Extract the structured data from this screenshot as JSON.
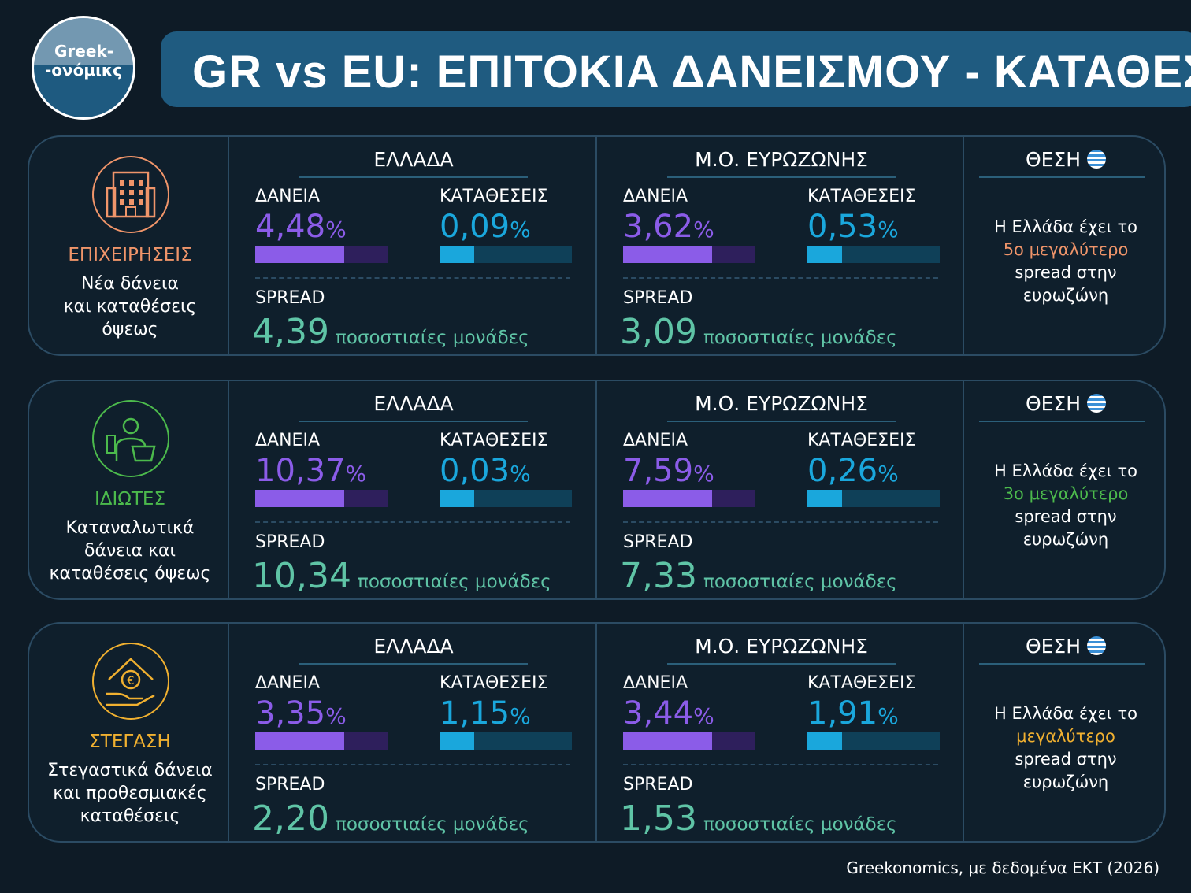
{
  "header": {
    "logo_line1": "Greek-",
    "logo_line2": "-ονόμικς",
    "title": "GR vs EU: ΕΠΙΤΟΚΙΑ ΔΑΝΕΙΣΜΟΥ - ΚΑΤΑΘΕΣΕΩΝ"
  },
  "rows": [
    {
      "category": "ΕΠΙΧΕΙΡΗΣΕΙΣ",
      "category_color": "#f0956a",
      "icon": "building",
      "description": [
        "Νέα δάνεια",
        "και καταθέσεις",
        "όψεως"
      ],
      "greece": {
        "heading": "ΕΛΛΑΔΑ",
        "loans_label": "ΔΑΝΕΙΑ",
        "loans": "4,48",
        "deposits_label": "ΚΑΤΑΘΕΣΕΙΣ",
        "deposits": "0,09",
        "percent": "%",
        "spread_label": "SPREAD",
        "spread": "4,39",
        "spread_unit": "ποσοστιαίες μονάδες"
      },
      "eurozone": {
        "heading": "Μ.Ο. ΕΥΡΩΖΩΝΗΣ",
        "loans_label": "ΔΑΝΕΙΑ",
        "loans": "3,62",
        "deposits_label": "ΚΑΤΑΘΕΣΕΙΣ",
        "deposits": "0,53",
        "percent": "%",
        "spread_label": "SPREAD",
        "spread": "3,09",
        "spread_unit": "ποσοστιαίες μονάδες"
      },
      "rank": {
        "heading": "ΘΕΣΗ",
        "text_before": "Η Ελλάδα έχει το",
        "highlight": "5ο μεγαλύτερο",
        "text_after": "spread στην ευρωζώνη"
      }
    },
    {
      "category": "ΙΔΙΩΤΕΣ",
      "category_color": "#4cba4c",
      "icon": "person",
      "description": [
        "Καταναλωτικά",
        "δάνεια και",
        "καταθέσεις όψεως"
      ],
      "greece": {
        "heading": "ΕΛΛΑΔΑ",
        "loans_label": "ΔΑΝΕΙΑ",
        "loans": "10,37",
        "deposits_label": "ΚΑΤΑΘΕΣΕΙΣ",
        "deposits": "0,03",
        "percent": "%",
        "spread_label": "SPREAD",
        "spread": "10,34",
        "spread_unit": "ποσοστιαίες μονάδες"
      },
      "eurozone": {
        "heading": "Μ.Ο. ΕΥΡΩΖΩΝΗΣ",
        "loans_label": "ΔΑΝΕΙΑ",
        "loans": "7,59",
        "deposits_label": "ΚΑΤΑΘΕΣΕΙΣ",
        "deposits": "0,26",
        "percent": "%",
        "spread_label": "SPREAD",
        "spread": "7,33",
        "spread_unit": "ποσοστιαίες μονάδες"
      },
      "rank": {
        "heading": "ΘΕΣΗ",
        "text_before": "Η Ελλάδα έχει το",
        "highlight": "3ο μεγαλύτερο",
        "text_after": "spread στην ευρωζώνη"
      }
    },
    {
      "category": "ΣΤΕΓΑΣΗ",
      "category_color": "#f0b030",
      "icon": "house",
      "description": [
        "Στεγαστικά δάνεια",
        "και προθεσμιακές",
        "καταθέσεις"
      ],
      "greece": {
        "heading": "ΕΛΛΑΔΑ",
        "loans_label": "ΔΑΝΕΙΑ",
        "loans": "3,35",
        "deposits_label": "ΚΑΤΑΘΕΣΕΙΣ",
        "deposits": "1,15",
        "percent": "%",
        "spread_label": "SPREAD",
        "spread": "2,20",
        "spread_unit": "ποσοστιαίες μονάδες"
      },
      "eurozone": {
        "heading": "Μ.Ο. ΕΥΡΩΖΩΝΗΣ",
        "loans_label": "ΔΑΝΕΙΑ",
        "loans": "3,44",
        "deposits_label": "ΚΑΤΑΘΕΣΕΙΣ",
        "deposits": "1,91",
        "percent": "%",
        "spread_label": "SPREAD",
        "spread": "1,53",
        "spread_unit": "ποσοστιαίες μονάδες"
      },
      "rank": {
        "heading": "ΘΕΣΗ",
        "text_before": "Η Ελλάδα έχει το",
        "highlight": "μεγαλύτερο",
        "text_after": "spread στην ευρωζώνη"
      }
    }
  ],
  "footer": {
    "source": "Greekonomics, με δεδομένα ΕΚΤ (2026)"
  }
}
